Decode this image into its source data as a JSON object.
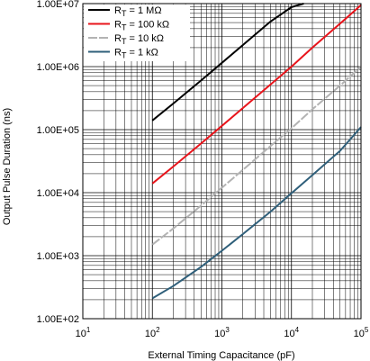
{
  "chart_data": {
    "type": "line",
    "xlabel": "External Timing Capacitance (pF)",
    "ylabel": "Output Pulse Duration (ns)",
    "xscale": "log",
    "yscale": "log",
    "xlim": [
      10,
      100000
    ],
    "ylim": [
      100,
      10000000
    ],
    "grid": true,
    "legend_position": "top-left",
    "x_ticks": [
      {
        "base": "10",
        "exp": "1"
      },
      {
        "base": "10",
        "exp": "2"
      },
      {
        "base": "10",
        "exp": "3"
      },
      {
        "base": "10",
        "exp": "4"
      },
      {
        "base": "10",
        "exp": "5"
      }
    ],
    "y_ticks": [
      "1.00E+02",
      "1.00E+03",
      "1.00E+04",
      "1.00E+05",
      "1.00E+06",
      "1.00E+07"
    ],
    "series": [
      {
        "label_main": "R",
        "label_sub": "T",
        "label_rest": " = 1 MΩ",
        "color": "#000000",
        "dash": "",
        "x": [
          100,
          200,
          500,
          1000,
          2000,
          5000,
          10000,
          15000
        ],
        "y": [
          140000,
          260000,
          600000,
          1150000,
          2200000,
          5200000,
          8800000,
          10000000
        ]
      },
      {
        "label_main": "R",
        "label_sub": "T",
        "label_rest": " = 100 kΩ",
        "color": "#e8141b",
        "dash": "",
        "x": [
          100,
          200,
          500,
          1000,
          2000,
          5000,
          10000,
          20000,
          50000,
          100000
        ],
        "y": [
          14000,
          26000,
          60000,
          115000,
          220000,
          520000,
          1000000,
          2000000,
          4800000,
          9500000
        ]
      },
      {
        "label_main": "R",
        "label_sub": "T",
        "label_rest": " = 10 kΩ",
        "color": "#b3b3b3",
        "dash": "10,2",
        "x": [
          100,
          200,
          500,
          1000,
          2000,
          5000,
          10000,
          20000,
          50000,
          100000
        ],
        "y": [
          1500,
          2700,
          6200,
          12000,
          23000,
          55000,
          105000,
          210000,
          500000,
          1000000
        ]
      },
      {
        "label_main": "R",
        "label_sub": "T",
        "label_rest": " = 1 kΩ",
        "color": "#2f5f7a",
        "dash": "",
        "x": [
          100,
          200,
          500,
          1000,
          2000,
          5000,
          10000,
          20000,
          50000,
          100000
        ],
        "y": [
          210,
          330,
          660,
          1200,
          2200,
          5000,
          9800,
          19000,
          46000,
          110000
        ]
      }
    ]
  }
}
